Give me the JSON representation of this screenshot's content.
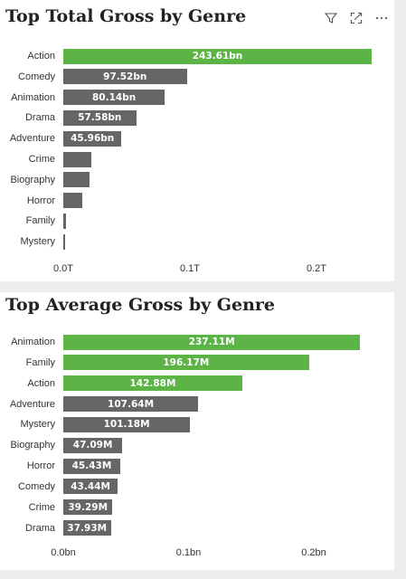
{
  "toolbar": {
    "icons": [
      "filter-icon",
      "focus-mode-icon",
      "more-options-icon"
    ]
  },
  "colors": {
    "highlight": "#5cb346",
    "default": "#666666"
  },
  "chart_data": [
    {
      "type": "bar",
      "orientation": "horizontal",
      "title": "Top Total Gross by Genre",
      "categories": [
        "Action",
        "Comedy",
        "Animation",
        "Drama",
        "Adventure",
        "Crime",
        "Biography",
        "Horror",
        "Family",
        "Mystery"
      ],
      "values": [
        243.61,
        97.52,
        80.14,
        57.58,
        45.96,
        22,
        21,
        15,
        2,
        1.5
      ],
      "value_unit": "bn",
      "data_labels": [
        "243.61bn",
        "97.52bn",
        "80.14bn",
        "57.58bn",
        "45.96bn",
        "",
        "",
        "",
        "",
        ""
      ],
      "highlighted": [
        true,
        false,
        false,
        false,
        false,
        false,
        false,
        false,
        false,
        false
      ],
      "xlim": [
        0,
        200
      ],
      "ticks": [
        0,
        100,
        200
      ],
      "tick_labels": [
        "0.0T",
        "0.1T",
        "0.2T"
      ]
    },
    {
      "type": "bar",
      "orientation": "horizontal",
      "title": "Top Average Gross by Genre",
      "categories": [
        "Animation",
        "Family",
        "Action",
        "Adventure",
        "Mystery",
        "Biography",
        "Horror",
        "Comedy",
        "Crime",
        "Drama"
      ],
      "values": [
        237.11,
        196.17,
        142.88,
        107.64,
        101.18,
        47.09,
        45.43,
        43.44,
        39.29,
        37.93
      ],
      "value_unit": "M",
      "data_labels": [
        "237.11M",
        "196.17M",
        "142.88M",
        "107.64M",
        "101.18M",
        "47.09M",
        "45.43M",
        "43.44M",
        "39.29M",
        "37.93M"
      ],
      "highlighted": [
        true,
        true,
        true,
        false,
        false,
        false,
        false,
        false,
        false,
        false
      ],
      "xlim": [
        0,
        200
      ],
      "ticks": [
        0,
        100,
        200
      ],
      "tick_labels": [
        "0.0bn",
        "0.1bn",
        "0.2bn"
      ]
    }
  ]
}
